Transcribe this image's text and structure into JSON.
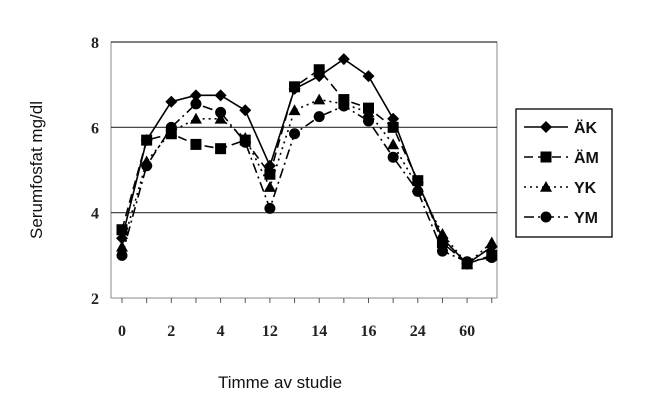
{
  "chart_data": {
    "type": "line",
    "title": "",
    "xlabel": "Timme av studie",
    "ylabel": "Serumfosfat mg/dl",
    "ylim": [
      2,
      8
    ],
    "yticks": [
      "2",
      "4",
      "6",
      "8"
    ],
    "grid": "horizontal at 4, 6, 8",
    "legend_position": "right",
    "xtick_labels": [
      "0",
      "2",
      "4",
      "12",
      "14",
      "16",
      "24",
      "60"
    ],
    "x": [
      0,
      1,
      2,
      3,
      4,
      5,
      6,
      7,
      8,
      9,
      10,
      11,
      12,
      13,
      14,
      15
    ],
    "series": [
      {
        "name": "ÄK",
        "marker": "diamond",
        "line": "solid",
        "values": [
          3.4,
          5.7,
          6.6,
          6.75,
          6.75,
          6.4,
          5.1,
          6.9,
          7.2,
          7.6,
          7.2,
          6.2,
          4.7,
          3.4,
          2.8,
          3.2
        ]
      },
      {
        "name": "ÄM",
        "marker": "square",
        "line": "dashed",
        "values": [
          3.6,
          5.7,
          5.85,
          5.6,
          5.5,
          5.7,
          4.9,
          6.95,
          7.35,
          6.65,
          6.45,
          6.0,
          4.75,
          3.3,
          2.8,
          3.0
        ]
      },
      {
        "name": "YK",
        "marker": "triangle",
        "line": "dotted",
        "values": [
          3.2,
          5.2,
          5.9,
          6.2,
          6.2,
          5.75,
          4.6,
          6.4,
          6.65,
          6.55,
          6.35,
          5.6,
          4.6,
          3.5,
          2.8,
          3.3
        ]
      },
      {
        "name": "YM",
        "marker": "circle",
        "line": "dashdot",
        "values": [
          3.0,
          5.1,
          6.0,
          6.55,
          6.35,
          5.65,
          4.1,
          5.85,
          6.25,
          6.5,
          6.15,
          5.3,
          4.5,
          3.1,
          2.85,
          2.95
        ]
      }
    ]
  }
}
